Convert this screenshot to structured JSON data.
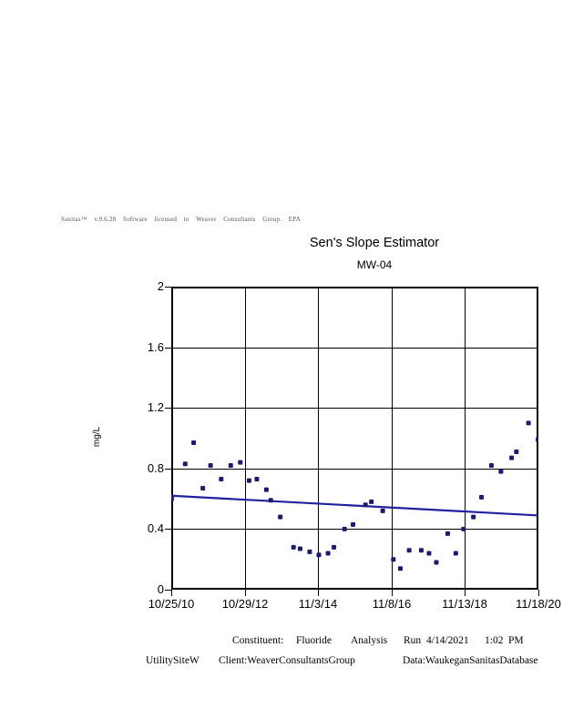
{
  "header": {
    "license_line": "Sanitas™ v.9.6.28 Software licensed to Weaver Consultants Group. EPA"
  },
  "colors": {
    "marker": "#1b1b6e",
    "trend_line": "#2020a0",
    "grid": "#000000",
    "border": "#000000"
  },
  "chart_data": {
    "type": "scatter",
    "title": "Sen's Slope Estimator",
    "subtitle": "MW-04",
    "ylabel": "mg/L",
    "ylim": [
      0,
      2
    ],
    "grid": "on",
    "y_tick_labels": [
      "2",
      "1.6",
      "1.2",
      "0.8",
      "0.4",
      "0"
    ],
    "x_tick_labels": [
      "10/25/10",
      "10/29/12",
      "11/3/14",
      "11/8/16",
      "11/13/18",
      "11/18/20"
    ],
    "points_format": [
      "x_fraction_along_time_axis",
      "value_mg_L"
    ],
    "points": [
      [
        0.001,
        0.6
      ],
      [
        0.038,
        0.83
      ],
      [
        0.061,
        0.97
      ],
      [
        0.086,
        0.67
      ],
      [
        0.107,
        0.82
      ],
      [
        0.136,
        0.73
      ],
      [
        0.162,
        0.82
      ],
      [
        0.188,
        0.84
      ],
      [
        0.212,
        0.72
      ],
      [
        0.233,
        0.73
      ],
      [
        0.259,
        0.66
      ],
      [
        0.271,
        0.59
      ],
      [
        0.297,
        0.48
      ],
      [
        0.333,
        0.28
      ],
      [
        0.351,
        0.27
      ],
      [
        0.377,
        0.25
      ],
      [
        0.402,
        0.23
      ],
      [
        0.427,
        0.24
      ],
      [
        0.443,
        0.28
      ],
      [
        0.472,
        0.4
      ],
      [
        0.495,
        0.43
      ],
      [
        0.529,
        0.56
      ],
      [
        0.545,
        0.58
      ],
      [
        0.576,
        0.52
      ],
      [
        0.605,
        0.2
      ],
      [
        0.624,
        0.14
      ],
      [
        0.648,
        0.26
      ],
      [
        0.681,
        0.26
      ],
      [
        0.702,
        0.24
      ],
      [
        0.722,
        0.18
      ],
      [
        0.753,
        0.37
      ],
      [
        0.775,
        0.24
      ],
      [
        0.796,
        0.4
      ],
      [
        0.823,
        0.48
      ],
      [
        0.845,
        0.61
      ],
      [
        0.872,
        0.82
      ],
      [
        0.898,
        0.78
      ],
      [
        0.927,
        0.87
      ],
      [
        0.94,
        0.91
      ],
      [
        0.973,
        1.1
      ],
      [
        0.999,
        0.99
      ]
    ],
    "sen_line": {
      "start_value": 0.62,
      "end_value": 0.49
    }
  },
  "footer": {
    "constituent_label": "Constituent:",
    "constituent_value": "Fluoride",
    "analysis_label": "Analysis",
    "run_label": "Run",
    "run_date": "4/14/2021",
    "run_time": "1:02",
    "run_ampm": "PM",
    "site": "UtilitySiteW",
    "client": "Client:WeaverConsultantsGroup",
    "data_source": "Data:WaukeganSanitasDatabase"
  }
}
